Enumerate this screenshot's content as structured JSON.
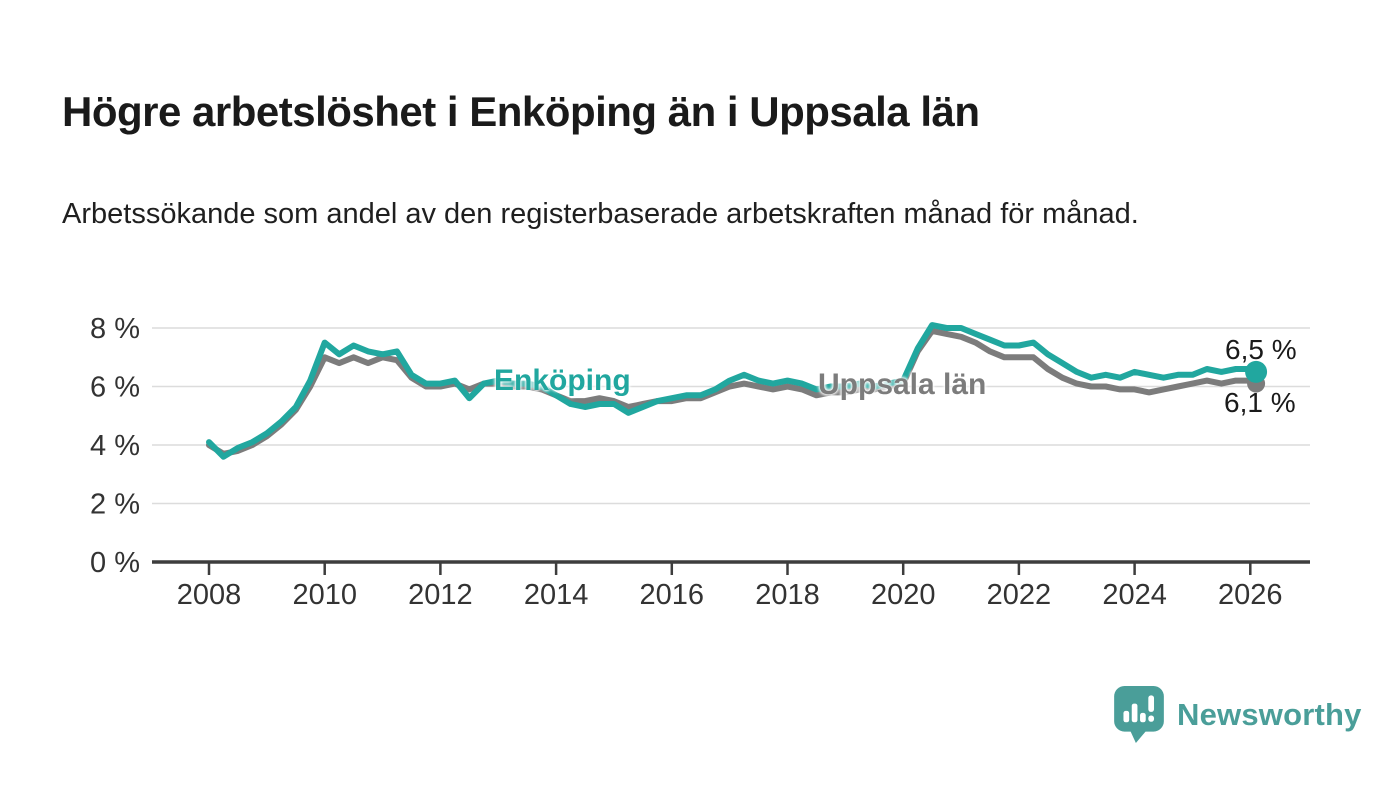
{
  "title": "Högre arbetslöshet i Enköping än i Uppsala län",
  "subtitle": "Arbetssökande som andel av den registerbaserade arbetskraften månad för månad.",
  "footer": {
    "brand": "Newsworthy"
  },
  "colors": {
    "series_enkoping": "#21a79f",
    "series_uppsala": "#7c7c7c",
    "gridline": "#dcdcdc",
    "axis": "#3d3d3d",
    "axis_text": "#333333",
    "brand_teal": "#4a9e99",
    "text": "#1a1a1a"
  },
  "chart_data": {
    "type": "line",
    "title": "Högre arbetslöshet i Enköping än i Uppsala län",
    "xlabel": "",
    "ylabel": "",
    "grid": true,
    "legend_position": "inline-labels-on-lines",
    "xlim": [
      2007.0,
      2027.0
    ],
    "ylim": [
      0,
      8.6
    ],
    "x_ticks": [
      2008,
      2010,
      2012,
      2014,
      2016,
      2018,
      2020,
      2022,
      2024,
      2026
    ],
    "y_ticks": [
      {
        "value": 0,
        "label": "0 %"
      },
      {
        "value": 2,
        "label": "2 %"
      },
      {
        "value": 4,
        "label": "4 %"
      },
      {
        "value": 6,
        "label": "6 %"
      },
      {
        "value": 8,
        "label": "8 %"
      }
    ],
    "x": [
      2008,
      2008.25,
      2008.5,
      2008.75,
      2009,
      2009.25,
      2009.5,
      2009.75,
      2010,
      2010.25,
      2010.5,
      2010.75,
      2011,
      2011.25,
      2011.5,
      2011.75,
      2012,
      2012.25,
      2012.5,
      2012.75,
      2013,
      2013.25,
      2013.5,
      2013.75,
      2014,
      2014.25,
      2014.5,
      2014.75,
      2015,
      2015.25,
      2015.5,
      2015.75,
      2016,
      2016.25,
      2016.5,
      2016.75,
      2017,
      2017.25,
      2017.5,
      2017.75,
      2018,
      2018.25,
      2018.5,
      2018.75,
      2019,
      2019.25,
      2019.5,
      2019.75,
      2020,
      2020.25,
      2020.5,
      2020.75,
      2021,
      2021.25,
      2021.5,
      2021.75,
      2022,
      2022.25,
      2022.5,
      2022.75,
      2023,
      2023.25,
      2023.5,
      2023.75,
      2024,
      2024.25,
      2024.5,
      2024.75,
      2025,
      2025.25,
      2025.5,
      2025.75,
      2026,
      2026.1
    ],
    "series": [
      {
        "name": "Enköping",
        "color": "#21a79f",
        "end_label": "6,5 %",
        "end_value": 6.5,
        "values": [
          4.1,
          3.6,
          3.9,
          4.1,
          4.4,
          4.8,
          5.3,
          6.2,
          7.5,
          7.1,
          7.4,
          7.2,
          7.1,
          7.2,
          6.4,
          6.1,
          6.1,
          6.2,
          5.6,
          6.1,
          6.2,
          6.1,
          6.1,
          6.0,
          5.7,
          5.4,
          5.3,
          5.4,
          5.4,
          5.1,
          5.3,
          5.5,
          5.6,
          5.7,
          5.7,
          5.9,
          6.2,
          6.4,
          6.2,
          6.1,
          6.2,
          6.1,
          5.9,
          6.0,
          6.0,
          6.1,
          6.0,
          6.1,
          6.2,
          7.3,
          8.1,
          8.0,
          8.0,
          7.8,
          7.6,
          7.4,
          7.4,
          7.5,
          7.1,
          6.8,
          6.5,
          6.3,
          6.4,
          6.3,
          6.5,
          6.4,
          6.3,
          6.4,
          6.4,
          6.6,
          6.5,
          6.6,
          6.6,
          6.5
        ]
      },
      {
        "name": "Uppsala län",
        "color": "#7c7c7c",
        "end_label": "6,1 %",
        "end_value": 6.1,
        "values": [
          4.0,
          3.7,
          3.8,
          4.0,
          4.3,
          4.7,
          5.2,
          6.0,
          7.0,
          6.8,
          7.0,
          6.8,
          7.0,
          6.9,
          6.3,
          6.0,
          6.0,
          6.1,
          5.9,
          6.1,
          6.1,
          6.0,
          6.0,
          5.9,
          5.7,
          5.5,
          5.5,
          5.6,
          5.5,
          5.3,
          5.4,
          5.5,
          5.5,
          5.6,
          5.6,
          5.8,
          6.0,
          6.1,
          6.0,
          5.9,
          6.0,
          5.9,
          5.7,
          5.8,
          5.8,
          5.9,
          5.9,
          6.0,
          6.1,
          7.2,
          7.9,
          7.8,
          7.7,
          7.5,
          7.2,
          7.0,
          7.0,
          7.0,
          6.6,
          6.3,
          6.1,
          6.0,
          6.0,
          5.9,
          5.9,
          5.8,
          5.9,
          6.0,
          6.1,
          6.2,
          6.1,
          6.2,
          6.2,
          6.1
        ]
      }
    ]
  }
}
